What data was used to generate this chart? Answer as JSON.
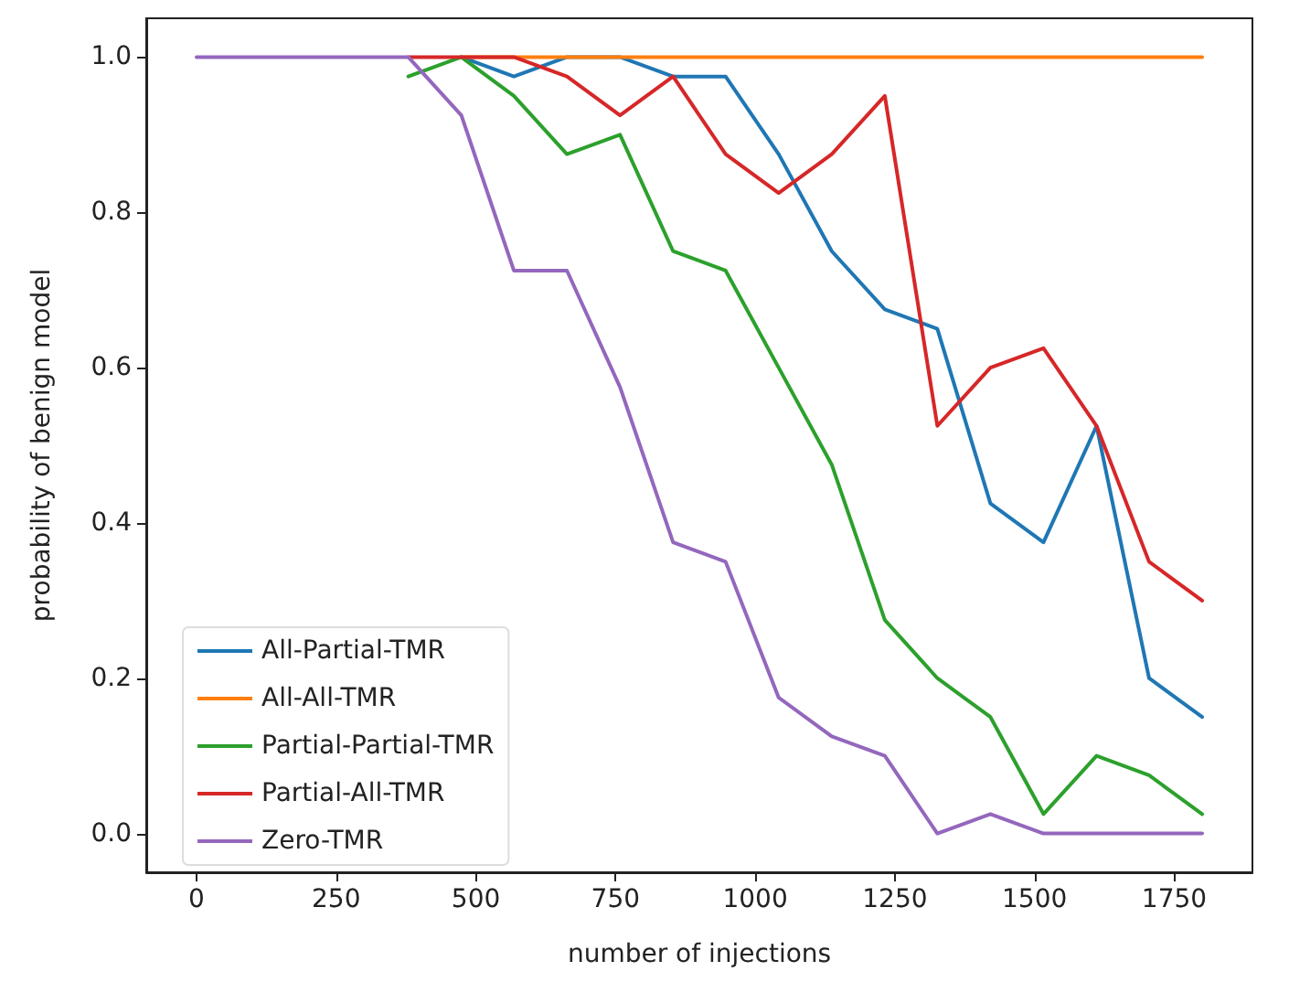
{
  "chart_data": {
    "type": "line",
    "xlabel": "number of injections",
    "ylabel": "probability of benign model",
    "x": [
      0,
      95,
      189,
      284,
      379,
      474,
      568,
      663,
      758,
      853,
      947,
      1042,
      1137,
      1232,
      1326,
      1421,
      1516,
      1611,
      1705,
      1800
    ],
    "series": [
      {
        "name": "All-Partial-TMR",
        "color": "#1f77b4",
        "values": [
          null,
          null,
          null,
          null,
          null,
          1,
          0.975,
          1,
          1,
          0.975,
          0.975,
          0.875,
          0.75,
          0.675,
          0.65,
          0.425,
          0.375,
          0.525,
          0.2,
          0.15
        ]
      },
      {
        "name": "All-All-TMR",
        "color": "#ff7f0e",
        "values": [
          null,
          null,
          null,
          null,
          null,
          1,
          1,
          1,
          1,
          1,
          1,
          1,
          1,
          1,
          1,
          1,
          1,
          1,
          1,
          1
        ]
      },
      {
        "name": "Partial-Partial-TMR",
        "color": "#2ca02c",
        "values": [
          null,
          null,
          null,
          null,
          0.975,
          1,
          0.95,
          0.875,
          0.9,
          0.75,
          0.725,
          0.6,
          0.475,
          0.275,
          0.2,
          0.15,
          0.025,
          0.1,
          0.075,
          0.025
        ]
      },
      {
        "name": "Partial-All-TMR",
        "color": "#d62728",
        "values": [
          null,
          null,
          null,
          null,
          1,
          1,
          1,
          0.975,
          0.925,
          0.975,
          0.875,
          0.825,
          0.875,
          0.95,
          0.525,
          0.6,
          0.625,
          0.525,
          0.35,
          0.3
        ]
      },
      {
        "name": "Zero-TMR",
        "color": "#9467bd",
        "values": [
          1,
          1,
          1,
          1,
          1,
          0.925,
          0.725,
          0.725,
          0.575,
          0.375,
          0.35,
          0.175,
          0.125,
          0.1,
          0,
          0.025,
          0,
          0,
          0,
          0
        ]
      }
    ],
    "xlim": [
      -90,
      1890
    ],
    "xticks": [
      0,
      250,
      500,
      750,
      1000,
      1250,
      1500,
      1750
    ],
    "ylim": [
      -0.05,
      1.05
    ],
    "yticks": [
      {
        "value": 0,
        "label": "0.0"
      },
      {
        "value": 0.2,
        "label": "0.2"
      },
      {
        "value": 0.4,
        "label": "0.4"
      },
      {
        "value": 0.6,
        "label": "0.6"
      },
      {
        "value": 0.8,
        "label": "0.8"
      },
      {
        "value": 1,
        "label": "1.0"
      }
    ],
    "grid": false,
    "legend": "bottom left",
    "marker": "none",
    "line_style": "solid"
  }
}
